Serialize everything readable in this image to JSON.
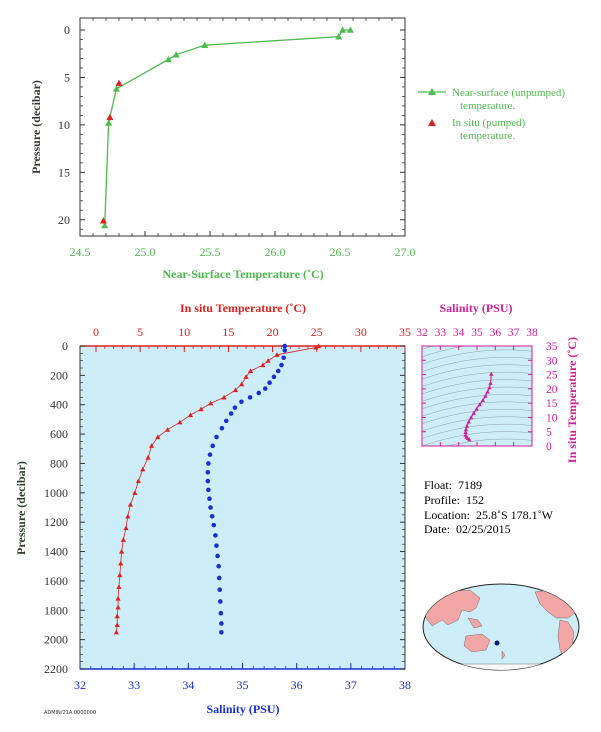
{
  "colors": {
    "green": "#4dbb4d",
    "red": "#e02020",
    "blue": "#1a2fd0",
    "magenta": "#d0209a",
    "axis_gray": "#333333",
    "plot_bg": "#cdeef8",
    "navy": "#0b1a6e"
  },
  "chart_data": [
    {
      "type": "line",
      "xlabel": "Near-Surface Temperature (˚C)",
      "ylabel": "Pressure (decibar)",
      "xlim": [
        24.5,
        27.0
      ],
      "ylim": [
        0,
        22
      ],
      "y_inverted": true,
      "x_ticks": [
        "24.5",
        "25.0",
        "25.5",
        "26.0",
        "26.5",
        "27.0"
      ],
      "y_ticks": [
        "0",
        "5",
        "10",
        "15",
        "20"
      ],
      "legend_placement": "right",
      "series": [
        {
          "name": "Near-surface (unpumped) temperature.",
          "color": "#4dbb4d",
          "marker": "triangle",
          "x": [
            24.69,
            24.72,
            24.78,
            25.18,
            25.24,
            25.46,
            26.49,
            26.52,
            26.58
          ],
          "y": [
            20.6,
            9.8,
            6.2,
            3.1,
            2.6,
            1.6,
            0.7,
            0.0,
            0.0
          ]
        },
        {
          "name": "In situ (pumped) temperature.",
          "color": "#e02020",
          "marker": "triangle",
          "x": [
            24.68,
            24.73,
            24.8
          ],
          "y": [
            20.1,
            9.2,
            5.6
          ]
        }
      ]
    },
    {
      "type": "scatter",
      "xlabel": "Salinity (PSU)",
      "x2label": "In situ Temperature (˚C)",
      "ylabel": "Pressure (decibar)",
      "xlim": [
        32,
        38
      ],
      "x2lim": [
        0,
        35
      ],
      "ylim": [
        0,
        2200
      ],
      "y_inverted": true,
      "x_ticks": [
        "32",
        "33",
        "34",
        "35",
        "36",
        "37",
        "38"
      ],
      "x2_ticks": [
        "0",
        "5",
        "10",
        "15",
        "20",
        "25",
        "30",
        "35"
      ],
      "y_ticks": [
        "0",
        "200",
        "400",
        "600",
        "800",
        "1000",
        "1200",
        "1400",
        "1600",
        "1800",
        "2000",
        "2200"
      ],
      "series": [
        {
          "name": "In situ Temperature (˚C)",
          "color": "#e02020",
          "marker": "triangle",
          "axis": "top",
          "x": [
            25.2,
            24.9,
            20.5,
            19.5,
            18.9,
            17.5,
            17.0,
            16.5,
            15.8,
            14.5,
            13.0,
            11.9,
            10.7,
            9.5,
            8.1,
            7.0,
            6.3,
            5.9,
            5.3,
            4.8,
            4.4,
            3.9,
            3.6,
            3.4,
            3.1,
            2.9,
            2.8,
            2.7,
            2.6,
            2.5,
            2.5,
            2.4,
            2.4,
            2.3
          ],
          "y": [
            0,
            10,
            60,
            100,
            130,
            170,
            210,
            260,
            300,
            350,
            390,
            430,
            470,
            520,
            570,
            620,
            680,
            760,
            840,
            920,
            1000,
            1080,
            1160,
            1240,
            1320,
            1400,
            1480,
            1560,
            1640,
            1720,
            1780,
            1840,
            1900,
            1950
          ]
        },
        {
          "name": "Salinity (PSU)",
          "color": "#1a2fd0",
          "marker": "dot",
          "axis": "bottom",
          "x": [
            35.78,
            35.78,
            35.76,
            35.72,
            35.66,
            35.58,
            35.5,
            35.42,
            35.3,
            35.14,
            34.98,
            34.86,
            34.79,
            34.7,
            34.62,
            34.52,
            34.45,
            34.4,
            34.37,
            34.36,
            34.36,
            34.37,
            34.39,
            34.41,
            34.44,
            34.47,
            34.5,
            34.52,
            34.54,
            34.56,
            34.57,
            34.58,
            34.59,
            34.6,
            34.61,
            34.61
          ],
          "y": [
            0,
            30,
            80,
            130,
            170,
            210,
            250,
            290,
            320,
            350,
            380,
            420,
            460,
            510,
            560,
            620,
            680,
            740,
            800,
            860,
            920,
            980,
            1040,
            1100,
            1160,
            1220,
            1290,
            1360,
            1430,
            1500,
            1580,
            1660,
            1740,
            1820,
            1890,
            1950
          ]
        }
      ]
    },
    {
      "type": "scatter",
      "xlabel": "Salinity (PSU)",
      "ylabel": "In situ Temperature (˚C)",
      "xlim": [
        32,
        38
      ],
      "ylim": [
        0,
        35
      ],
      "x_ticks": [
        "32",
        "33",
        "34",
        "35",
        "36",
        "37",
        "38"
      ],
      "y_ticks": [
        "0",
        "5",
        "10",
        "15",
        "20",
        "25",
        "30",
        "35"
      ],
      "series": [
        {
          "color": "#d0209a",
          "marker": "triangle",
          "x": [
            35.78,
            35.74,
            35.68,
            35.58,
            35.46,
            35.32,
            35.14,
            34.98,
            34.82,
            34.68,
            34.55,
            34.45,
            34.4,
            34.38,
            34.38,
            34.42,
            34.5,
            34.58
          ],
          "y": [
            25.2,
            22.0,
            20.5,
            19.0,
            17.5,
            16.0,
            14.5,
            13.0,
            11.5,
            10.0,
            8.5,
            7.0,
            5.8,
            4.8,
            3.9,
            3.2,
            2.7,
            2.3
          ]
        }
      ]
    }
  ],
  "info": {
    "float_label": "Float:",
    "float_value": "7189",
    "profile_label": "Profile:",
    "profile_value": "152",
    "location_label": "Location:",
    "location_value": "25.8˚S  178.1˚W",
    "date_label": "Date:",
    "date_value": "02/25/2015"
  },
  "map": {
    "marker_lat": -25.8,
    "marker_lon": -178.1
  },
  "footer_text": "ADMIN/21A 0000000"
}
